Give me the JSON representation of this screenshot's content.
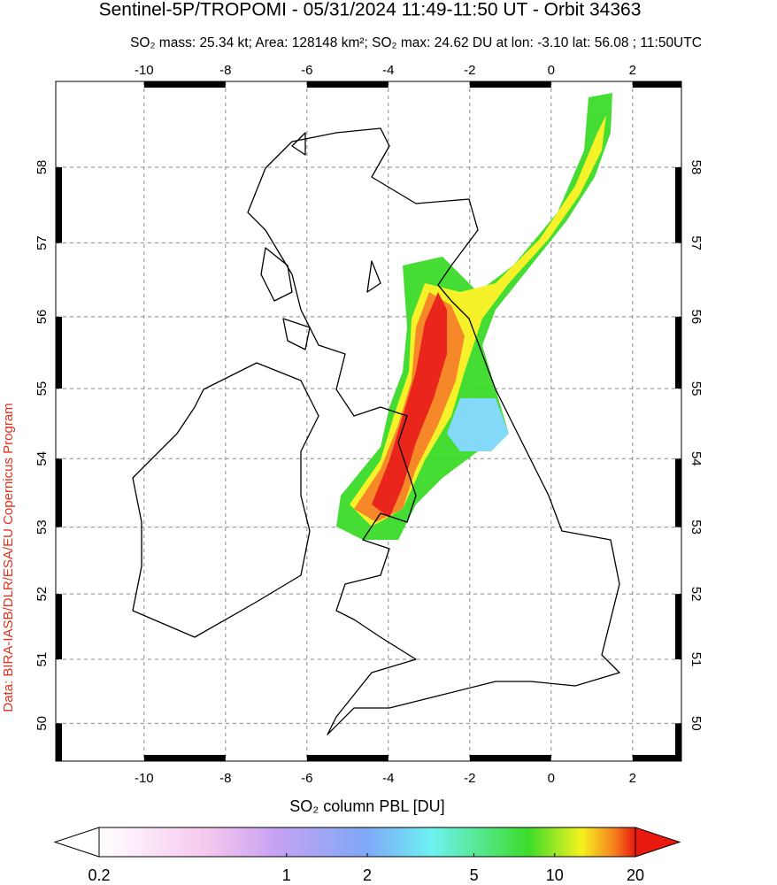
{
  "title": "Sentinel-5P/TROPOMI - 05/31/2024 11:49-11:50 UT - Orbit 34363",
  "subtitle": "SO₂ mass: 25.34 kt; Area: 128148 km²; SO₂ max: 24.62 DU at lon: -3.10 lat: 56.08 ; 11:50UTC",
  "credit": "Data: BIRA-IASB/DLR/ESA/EU Copernicus Program",
  "map": {
    "projection": "mercator",
    "lonlim": [
      -12.17,
      3.2
    ],
    "latlim": [
      49.4,
      59.1
    ],
    "lon_ticks": [
      -10,
      -8,
      -6,
      -4,
      -2,
      0,
      2
    ],
    "lat_ticks": [
      50,
      51,
      52,
      53,
      54,
      55,
      56,
      57,
      58
    ],
    "grid": true
  },
  "colorbar": {
    "label": "SO₂ column PBL [DU]",
    "scale": "log",
    "lim": [
      0.2,
      20
    ],
    "ticks": [
      0.2,
      1,
      2,
      5,
      10,
      20
    ]
  }
}
